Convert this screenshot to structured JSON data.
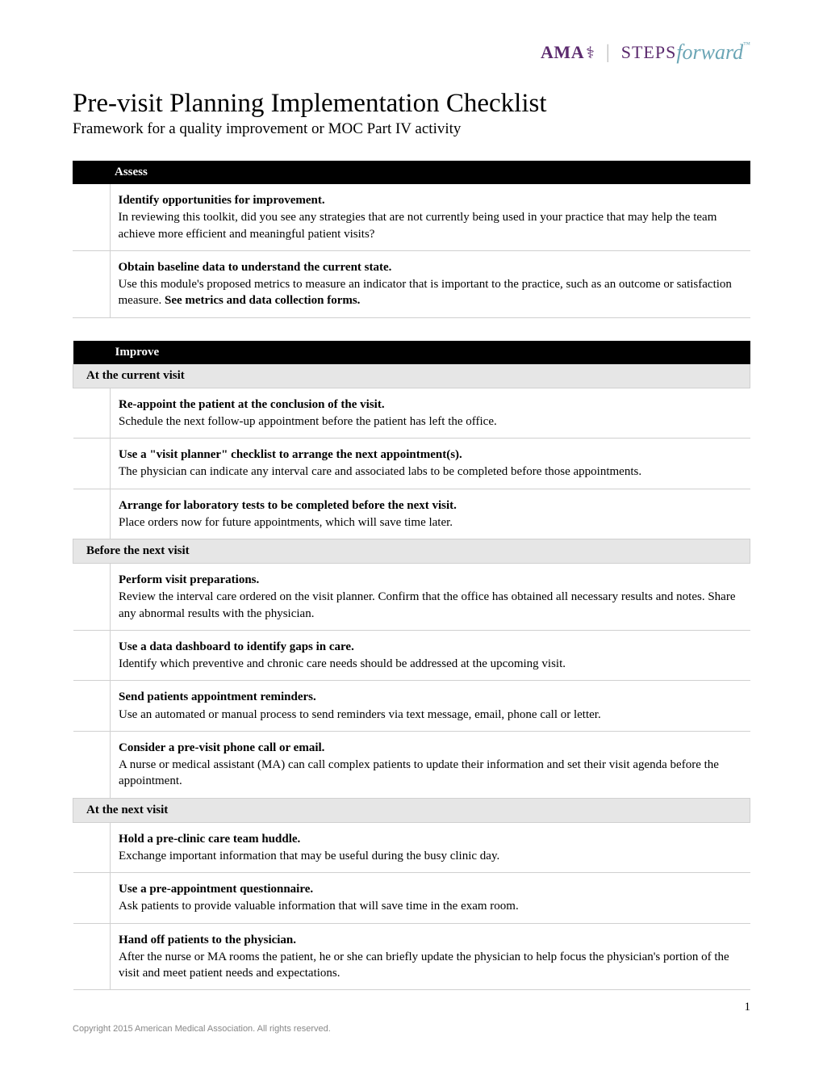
{
  "logo": {
    "ama": "AMA",
    "steps": "STEPS",
    "forward": "forward"
  },
  "title": "Pre-visit Planning Implementation Checklist",
  "subtitle": "Framework for a quality improvement or MOC Part IV activity",
  "sections": [
    {
      "header": "Assess",
      "groups": [
        {
          "subheader": null,
          "items": [
            {
              "title": "Identify opportunities for improvement.",
              "body": "In reviewing this toolkit, did you see any strategies that are not currently being used in your practice that may help the team achieve more efficient and meaningful patient visits?",
              "bold_suffix": null
            },
            {
              "title": "Obtain baseline data to understand the current state.",
              "body": "Use this module's proposed metrics to measure an indicator that is important to the practice, such as an outcome or satisfaction measure. ",
              "bold_suffix": "See metrics and data collection forms."
            }
          ]
        }
      ]
    },
    {
      "header": "Improve",
      "groups": [
        {
          "subheader": "At the current visit",
          "items": [
            {
              "title": "Re-appoint the patient at the conclusion of the visit.",
              "body": "Schedule the next follow-up appointment before the patient has left the office.",
              "bold_suffix": null
            },
            {
              "title": "Use a \"visit planner\" checklist to arrange the next appointment(s).",
              "body": "The physician can indicate any interval care and associated labs to be completed before those appointments.",
              "bold_suffix": null
            },
            {
              "title": "Arrange for laboratory tests to be completed before the next visit.",
              "body": "Place orders now for future appointments, which will save time later.",
              "bold_suffix": null
            }
          ]
        },
        {
          "subheader": "Before the next visit",
          "items": [
            {
              "title": "Perform visit preparations.",
              "body": "Review the interval care ordered on the visit planner. Confirm that the office has obtained all necessary results and notes. Share any abnormal results with the physician.",
              "bold_suffix": null
            },
            {
              "title": "Use a data dashboard to identify gaps in care.",
              "body": "Identify which preventive and chronic care needs should be addressed at the upcoming visit.",
              "bold_suffix": null
            },
            {
              "title": "Send patients appointment reminders.",
              "body": "Use an automated or manual process to send reminders via text message, email, phone call or letter.",
              "bold_suffix": null
            },
            {
              "title": "Consider a pre-visit phone call or email.",
              "body": "A nurse or medical assistant (MA) can call complex patients to update their information and set their visit agenda before the appointment.",
              "bold_suffix": null
            }
          ]
        },
        {
          "subheader": "At the next visit",
          "items": [
            {
              "title": "Hold a pre-clinic care team huddle.",
              "body": "Exchange important information that may be useful during the busy clinic day.",
              "bold_suffix": null
            },
            {
              "title": "Use a pre-appointment questionnaire.",
              "body": "Ask patients to provide valuable information that will save time in the exam room.",
              "bold_suffix": null
            },
            {
              "title": "Hand off patients to the physician.",
              "body": "After the nurse or MA rooms the patient, he or she can briefly update the physician to help focus the physician's portion of the visit and meet patient needs and expectations.",
              "bold_suffix": null
            }
          ]
        }
      ]
    }
  ],
  "page_number": "1",
  "copyright": "Copyright 2015 American Medical Association. All rights reserved."
}
